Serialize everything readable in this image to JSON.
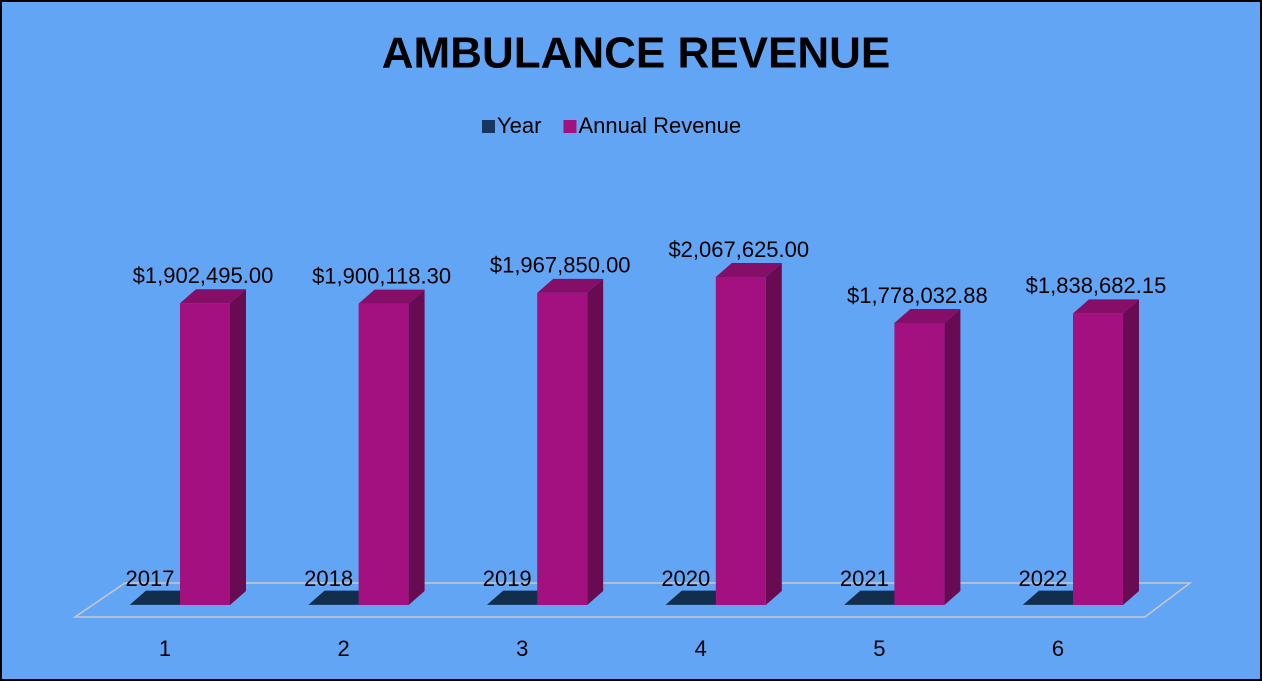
{
  "chart_data": {
    "type": "bar3d",
    "title": "AMBULANCE REVENUE",
    "categories": [
      "1",
      "2",
      "3",
      "4",
      "5",
      "6"
    ],
    "series": [
      {
        "name": "Year",
        "color": "#17375e",
        "values": [
          2017,
          2018,
          2019,
          2020,
          2021,
          2022
        ]
      },
      {
        "name": "Annual Revenue",
        "color": "#a2117f",
        "values": [
          1902495.0,
          1900118.3,
          1967850.0,
          2067625.0,
          1778032.88,
          1838682.15
        ],
        "value_labels": [
          "$1,902,495.00",
          "$1,900,118.30",
          "$1,967,850.00",
          "$2,067,625.00",
          "$1,778,032.88",
          "$1,838,682.15"
        ]
      }
    ],
    "legend": "top"
  }
}
